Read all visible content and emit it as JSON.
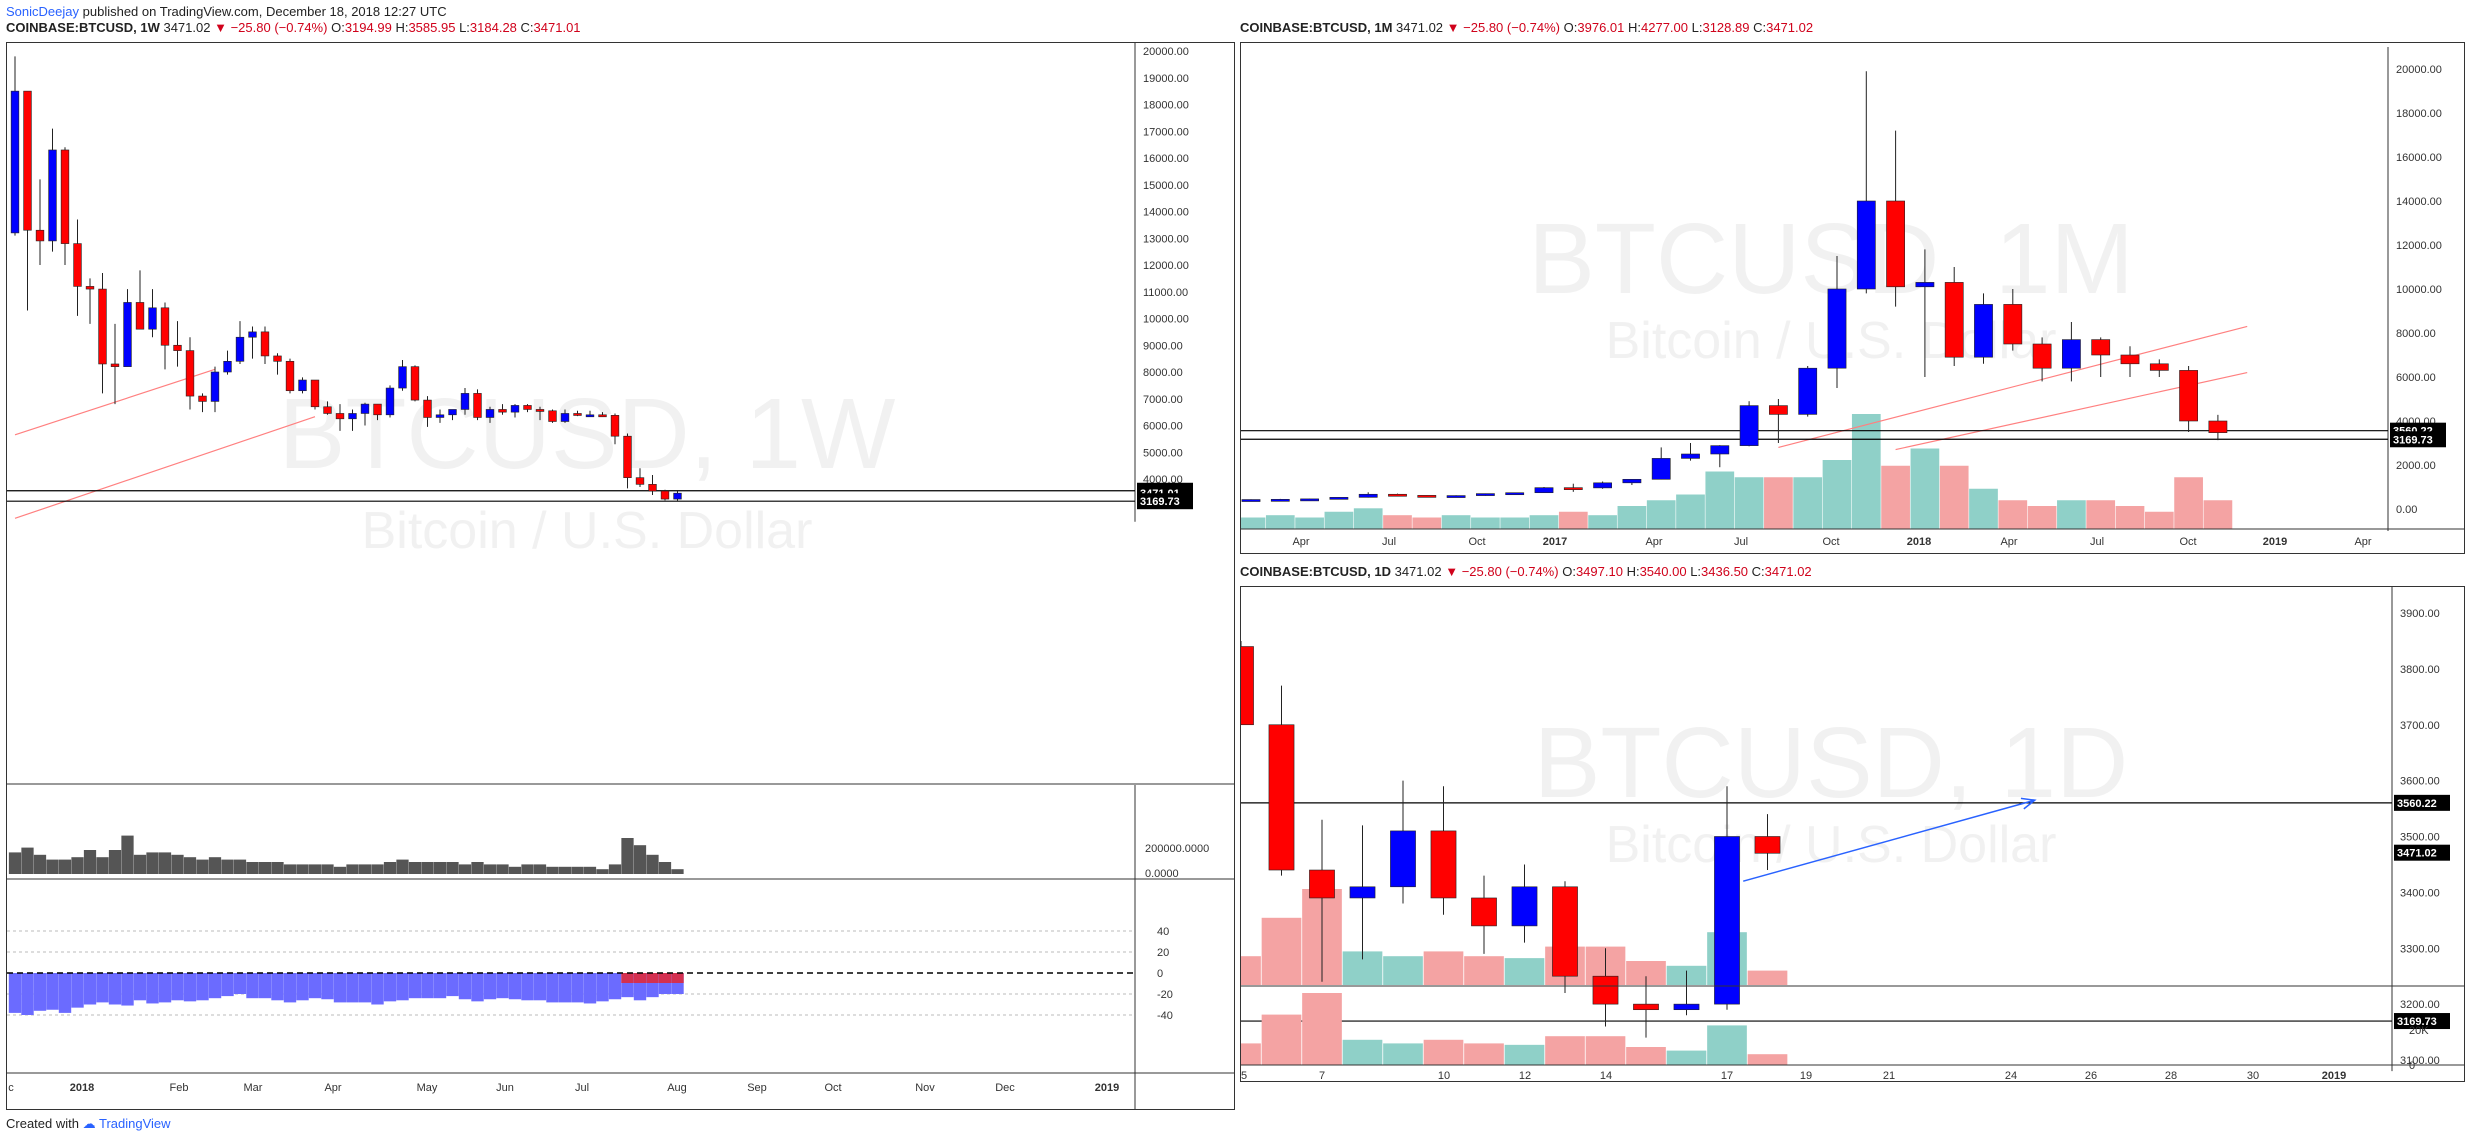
{
  "publish": {
    "user": "SonicDeejay",
    "text": "published on TradingView.com, December 18, 2018 12:27 UTC"
  },
  "footer": {
    "created": "Created with",
    "brand": "TradingView"
  },
  "colors": {
    "up": "#0000ff",
    "down": "#ff0000",
    "trend": "#ff8080",
    "sr": "#000000",
    "arrow": "#2962ff",
    "vol": "#555555",
    "volUp": "#8fd0c8",
    "volDown": "#f4a3a3",
    "osc": "#6b6bff",
    "oscNeg": "#d33050"
  },
  "left": {
    "header": {
      "sym": "COINBASE:BTCUSD, 1W",
      "price": "3471.02",
      "chg": "−25.80 (−0.74%)",
      "o_lbl": "O:",
      "o": "3194.99",
      "h_lbl": "H:",
      "h": "3585.95",
      "l_lbl": "L:",
      "l": "3184.28",
      "c_lbl": "C:",
      "c": "3471.01"
    },
    "watermark": {
      "title": "BTCUSD, 1W",
      "sub": "Bitcoin / U.S. Dollar"
    }
  },
  "tr": {
    "header": {
      "sym": "COINBASE:BTCUSD, 1M",
      "price": "3471.02",
      "chg": "−25.80 (−0.74%)",
      "o_lbl": "O:",
      "o": "3976.01",
      "h_lbl": "H:",
      "h": "4277.00",
      "l_lbl": "L:",
      "l": "3128.89",
      "c_lbl": "C:",
      "c": "3471.02"
    },
    "watermark": {
      "title": "BTCUSD, 1M",
      "sub": "Bitcoin / U.S. Dollar"
    }
  },
  "br": {
    "header": {
      "sym": "COINBASE:BTCUSD, 1D",
      "price": "3471.02",
      "chg": "−25.80 (−0.74%)",
      "o_lbl": "O:",
      "o": "3497.10",
      "h_lbl": "H:",
      "h": "3540.00",
      "l_lbl": "L:",
      "l": "3436.50",
      "c_lbl": "C:",
      "c": "3471.02"
    },
    "watermark": {
      "title": "BTCUSD, 1D",
      "sub": "Bitcoin / U.S. Dollar"
    }
  },
  "chart_data": [
    {
      "type": "candlestick",
      "title": "BTCUSD, 1W",
      "ylim": [
        2400,
        20800
      ],
      "yticks": [
        4000,
        5000,
        6000,
        7000,
        8000,
        9000,
        10000,
        11000,
        12000,
        13000,
        14000,
        15000,
        16000,
        17000,
        18000,
        19000,
        20000
      ],
      "xticks": [
        "c",
        "2018",
        "Feb",
        "Mar",
        "Apr",
        "May",
        "Jun",
        "Jul",
        "Aug",
        "Sep",
        "Oct",
        "Nov",
        "Dec",
        "2019"
      ],
      "price_labels": [
        "3560.22",
        "3471.01",
        "3169.73"
      ],
      "hlines": [
        3560.22,
        3169.73
      ],
      "trendlines": [
        {
          "from": [
            0,
            2530
          ],
          "to": [
            24,
            6330
          ]
        },
        {
          "from": [
            0,
            5650
          ],
          "to": [
            16,
            8100
          ]
        }
      ],
      "candles": [
        [
          13200,
          19800,
          13100,
          18500
        ],
        [
          18500,
          18500,
          10300,
          13300
        ],
        [
          13300,
          15200,
          12000,
          12900
        ],
        [
          12900,
          17100,
          12500,
          16300
        ],
        [
          16300,
          16400,
          12000,
          12800
        ],
        [
          12800,
          13700,
          10100,
          11200
        ],
        [
          11200,
          11500,
          9800,
          11100
        ],
        [
          11100,
          11700,
          7200,
          8300
        ],
        [
          8300,
          9800,
          6800,
          8200
        ],
        [
          8200,
          11100,
          8200,
          10600
        ],
        [
          10600,
          11800,
          9700,
          9600
        ],
        [
          9600,
          11100,
          9300,
          10400
        ],
        [
          10400,
          10600,
          8100,
          9000
        ],
        [
          9000,
          9900,
          8200,
          8800
        ],
        [
          8800,
          9300,
          6600,
          7100
        ],
        [
          7100,
          7200,
          6500,
          6900
        ],
        [
          6900,
          8200,
          6500,
          8000
        ],
        [
          8000,
          8800,
          7900,
          8400
        ],
        [
          8400,
          9900,
          8300,
          9300
        ],
        [
          9300,
          9700,
          8500,
          9500
        ],
        [
          9500,
          9700,
          8300,
          8600
        ],
        [
          8600,
          8700,
          7900,
          8400
        ],
        [
          8400,
          8500,
          7200,
          7300
        ],
        [
          7300,
          7800,
          7200,
          7700
        ],
        [
          7700,
          7700,
          6600,
          6700
        ],
        [
          6700,
          6900,
          6400,
          6450
        ],
        [
          6450,
          6800,
          5800,
          6250
        ],
        [
          6250,
          6600,
          5800,
          6450
        ],
        [
          6450,
          6850,
          6000,
          6800
        ],
        [
          6800,
          6800,
          6200,
          6400
        ],
        [
          6400,
          7500,
          6300,
          7400
        ],
        [
          7400,
          8450,
          7300,
          8200
        ],
        [
          8200,
          8250,
          6900,
          6950
        ],
        [
          6950,
          7100,
          5950,
          6300
        ],
        [
          6300,
          6600,
          6100,
          6400
        ],
        [
          6400,
          6600,
          6200,
          6600
        ],
        [
          6600,
          7400,
          6400,
          7200
        ],
        [
          7200,
          7350,
          6200,
          6300
        ],
        [
          6300,
          6700,
          6100,
          6600
        ],
        [
          6600,
          6800,
          6400,
          6500
        ],
        [
          6500,
          6800,
          6300,
          6750
        ],
        [
          6750,
          6800,
          6500,
          6600
        ],
        [
          6600,
          6700,
          6200,
          6550
        ],
        [
          6550,
          6600,
          6100,
          6150
        ],
        [
          6150,
          6600,
          6100,
          6450
        ],
        [
          6450,
          6550,
          6350,
          6400
        ],
        [
          6400,
          6550,
          6350,
          6400
        ],
        [
          6400,
          6500,
          6350,
          6380
        ],
        [
          6380,
          6450,
          5300,
          5600
        ],
        [
          5600,
          5700,
          3650,
          4050
        ],
        [
          4050,
          4400,
          3700,
          3800
        ],
        [
          3800,
          4150,
          3400,
          3550
        ],
        [
          3550,
          3600,
          3200,
          3250
        ],
        [
          3250,
          3590,
          3180,
          3470
        ]
      ],
      "volume": [
        0.45,
        0.55,
        0.4,
        0.3,
        0.3,
        0.35,
        0.5,
        0.35,
        0.5,
        0.8,
        0.4,
        0.45,
        0.45,
        0.4,
        0.35,
        0.3,
        0.35,
        0.3,
        0.3,
        0.25,
        0.25,
        0.25,
        0.2,
        0.2,
        0.2,
        0.2,
        0.15,
        0.2,
        0.2,
        0.2,
        0.25,
        0.3,
        0.25,
        0.25,
        0.25,
        0.25,
        0.2,
        0.25,
        0.2,
        0.2,
        0.15,
        0.2,
        0.2,
        0.15,
        0.15,
        0.15,
        0.15,
        0.1,
        0.2,
        0.75,
        0.6,
        0.4,
        0.25,
        0.1
      ],
      "volume_yticks": [
        "200000.0000",
        "0.0000"
      ],
      "oscillator": [
        -38,
        -40,
        -36,
        -35,
        -38,
        -33,
        -30,
        -28,
        -30,
        -31,
        -26,
        -29,
        -28,
        -26,
        -27,
        -26,
        -24,
        -22,
        -20,
        -24,
        -24,
        -26,
        -28,
        -26,
        -24,
        -25,
        -28,
        -28,
        -28,
        -30,
        -27,
        -26,
        -24,
        -24,
        -24,
        -22,
        -25,
        -27,
        -25,
        -24,
        -25,
        -26,
        -26,
        -28,
        -28,
        -28,
        -29,
        -27,
        -25,
        -23,
        -26,
        -23,
        -20,
        -20
      ],
      "osc_yticks": [
        40,
        20,
        0,
        -20,
        -40
      ]
    },
    {
      "type": "candlestick",
      "title": "BTCUSD, 1M",
      "ylim": [
        -1000,
        21000
      ],
      "yticks": [
        0,
        2000,
        4000,
        6000,
        8000,
        10000,
        12000,
        14000,
        16000,
        18000,
        20000
      ],
      "xticks": [
        "Apr",
        "Jul",
        "Oct",
        "2017",
        "Apr",
        "Jul",
        "Oct",
        "2018",
        "Apr",
        "Jul",
        "Oct",
        "2019",
        "Apr"
      ],
      "price_labels": [
        "3560.22",
        "3169.73"
      ],
      "hlines": [
        3560.22,
        3169.73
      ],
      "trendlines": [
        {
          "from": [
            18,
            2800
          ],
          "to": [
            34,
            8300
          ]
        },
        {
          "from": [
            22,
            2700
          ],
          "to": [
            34,
            6200
          ]
        }
      ],
      "candles": [
        [
          430,
          440,
          420,
          430
        ],
        [
          430,
          460,
          420,
          440
        ],
        [
          440,
          470,
          430,
          460
        ],
        [
          460,
          540,
          450,
          530
        ],
        [
          530,
          760,
          520,
          670
        ],
        [
          670,
          700,
          600,
          620
        ],
        [
          620,
          620,
          560,
          580
        ],
        [
          580,
          620,
          570,
          610
        ],
        [
          610,
          700,
          600,
          700
        ],
        [
          700,
          750,
          690,
          740
        ],
        [
          740,
          1000,
          740,
          970
        ],
        [
          970,
          1150,
          780,
          960
        ],
        [
          960,
          1250,
          920,
          1190
        ],
        [
          1190,
          1350,
          1090,
          1350
        ],
        [
          1350,
          2800,
          1340,
          2300
        ],
        [
          2300,
          3000,
          2200,
          2500
        ],
        [
          2500,
          2900,
          1900,
          2880
        ],
        [
          2880,
          4900,
          2850,
          4700
        ],
        [
          4700,
          5000,
          3000,
          4300
        ],
        [
          4300,
          6500,
          4200,
          6400
        ],
        [
          6400,
          11500,
          5500,
          10000
        ],
        [
          10000,
          19900,
          9800,
          14000
        ],
        [
          14000,
          17200,
          9200,
          10100
        ],
        [
          10100,
          11800,
          6000,
          10300
        ],
        [
          10300,
          11000,
          6500,
          6900
        ],
        [
          6900,
          9800,
          6600,
          9300
        ],
        [
          9300,
          10000,
          7200,
          7500
        ],
        [
          7500,
          7800,
          5800,
          6400
        ],
        [
          6400,
          8500,
          5800,
          7700
        ],
        [
          7700,
          7800,
          6000,
          7000
        ],
        [
          7000,
          7400,
          6000,
          6600
        ],
        [
          6600,
          6800,
          6000,
          6300
        ],
        [
          6300,
          6500,
          3500,
          4000
        ],
        [
          4000,
          4280,
          3130,
          3470
        ]
      ],
      "volume": [
        0.1,
        0.12,
        0.1,
        0.15,
        0.18,
        0.12,
        0.1,
        0.12,
        0.1,
        0.1,
        0.12,
        0.15,
        0.12,
        0.2,
        0.25,
        0.3,
        0.5,
        0.45,
        0.45,
        0.45,
        0.6,
        1.0,
        0.55,
        0.7,
        0.55,
        0.35,
        0.25,
        0.2,
        0.25,
        0.25,
        0.2,
        0.15,
        0.45,
        0.25
      ]
    },
    {
      "type": "candlestick",
      "title": "BTCUSD, 1D",
      "ylim": [
        3080,
        3950
      ],
      "yticks": [
        3100,
        3200,
        3300,
        3400,
        3500,
        3600,
        3700,
        3800,
        3900
      ],
      "xticks": [
        "5",
        "7",
        "10",
        "12",
        "14",
        "17",
        "19",
        "21",
        "24",
        "26",
        "28",
        "30",
        "2019"
      ],
      "price_labels": [
        "3560.22",
        "3471.02",
        "3169.73"
      ],
      "hlines": [
        3560.22,
        3169.73
      ],
      "arrow": {
        "from": [
          12.4,
          3420
        ],
        "to": [
          19.6,
          3565
        ]
      },
      "candles": [
        [
          3840,
          3850,
          3700,
          3700
        ],
        [
          3700,
          3770,
          3430,
          3440
        ],
        [
          3440,
          3530,
          3240,
          3390
        ],
        [
          3390,
          3520,
          3280,
          3410
        ],
        [
          3410,
          3600,
          3380,
          3510
        ],
        [
          3510,
          3590,
          3360,
          3390
        ],
        [
          3390,
          3430,
          3290,
          3340
        ],
        [
          3340,
          3450,
          3310,
          3410
        ],
        [
          3410,
          3420,
          3220,
          3250
        ],
        [
          3250,
          3300,
          3160,
          3200
        ],
        [
          3200,
          3250,
          3140,
          3190
        ],
        [
          3190,
          3260,
          3180,
          3200
        ],
        [
          3200,
          3590,
          3190,
          3500
        ],
        [
          3500,
          3540,
          3440,
          3470
        ]
      ],
      "volume": [
        0.3,
        0.7,
        1.0,
        0.35,
        0.3,
        0.35,
        0.3,
        0.28,
        0.4,
        0.4,
        0.25,
        0.2,
        0.55,
        0.15
      ],
      "volume_yticks": [
        "20K",
        "0"
      ]
    }
  ]
}
